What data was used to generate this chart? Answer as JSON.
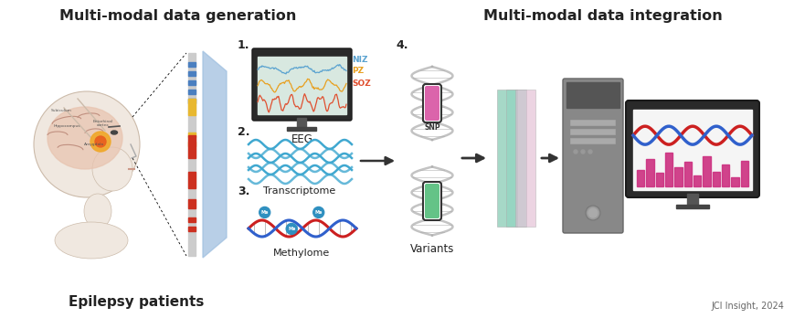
{
  "title_left": "Multi-modal data generation",
  "title_right": "Multi-modal data integration",
  "label_bottom_left": "Epilepsy patients",
  "label_eeg": "EEG",
  "label_transcriptome": "Transcriptome",
  "label_methylome": "Methylome",
  "label_variants": "Variants",
  "label_snp": "SNP",
  "label_citation": "JCI Insight, 2024",
  "legend_NIZ": "NIZ",
  "legend_PZ": "PZ",
  "legend_SOZ": "SOZ",
  "color_NIZ": "#5ba3d0",
  "color_PZ": "#e8a020",
  "color_SOZ": "#e05030",
  "bg_color": "#ffffff",
  "head_skin": "#f0e8e0",
  "head_outline": "#ccbbaa",
  "brain_color": "#e8c4b0",
  "electrode_blue": "#4a7fc0",
  "electrode_yellow": "#e8b830",
  "electrode_red": "#cc3020",
  "funnel_color": "#a0c0e0",
  "transcriptome_color": "#40a8d0",
  "panel_green": "#80c8b0",
  "panel_teal": "#90d4c0",
  "panel_pink": "#e0b8d0",
  "tower_color": "#888888",
  "tower_dark": "#666666",
  "monitor_bezel": "#555555",
  "dna_blue": "#3060cc",
  "dna_red": "#cc2020",
  "bar_pink": "#cc3080"
}
